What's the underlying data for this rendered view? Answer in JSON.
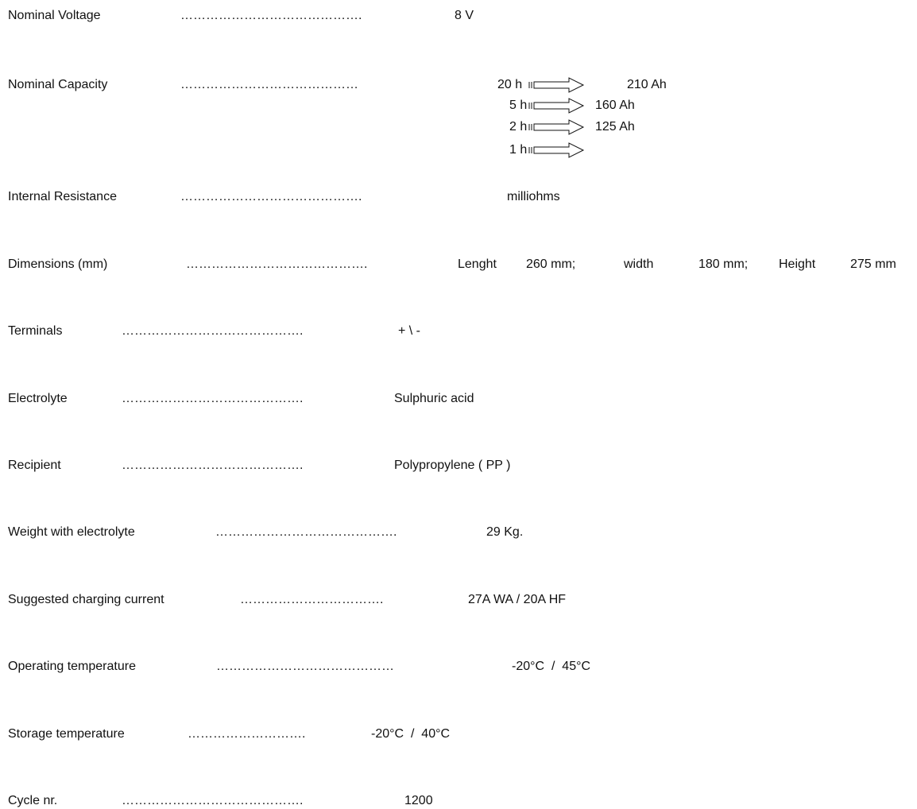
{
  "specs": {
    "nominal_voltage": {
      "label": "Nominal Voltage",
      "dots": "…………………………………….",
      "value": "8 V"
    },
    "nominal_capacity": {
      "label": "Nominal Capacity",
      "dots": "……………………………………",
      "rates": [
        {
          "time": "20 h",
          "capacity": "210 Ah"
        },
        {
          "time": "5 h",
          "capacity": "160 Ah"
        },
        {
          "time": "2 h",
          "capacity": "125 Ah"
        },
        {
          "time": "1 h",
          "capacity": ""
        }
      ]
    },
    "internal_resistance": {
      "label": "Internal Resistance",
      "dots": "…………………………………….",
      "value": "milliohms"
    },
    "dimensions": {
      "label": "Dimensions (mm)",
      "dots": "…………………………………….",
      "length_label": "Lenght",
      "length_value": "260 mm;",
      "width_label": "width",
      "width_value": "180 mm;",
      "height_label": "Height",
      "height_value": "275 mm"
    },
    "terminals": {
      "label": "Terminals",
      "dots": "…………………………………….",
      "value": "+ \\ -"
    },
    "electrolyte": {
      "label": "Electrolyte",
      "dots": "…………………………………….",
      "value": "Sulphuric acid"
    },
    "recipient": {
      "label": "Recipient",
      "dots": "…………………………………….",
      "value": "Polypropylene ( PP )"
    },
    "weight": {
      "label": "Weight with electrolyte",
      "dots": "…………………………………….",
      "value": "29 Kg."
    },
    "charging_current": {
      "label": "Suggested charging current",
      "dots": "…………………………….",
      "value": "27A WA / 20A HF"
    },
    "operating_temperature": {
      "label": "Operating temperature",
      "dots": "……………………………………",
      "value": "-20°C  /  45°C"
    },
    "storage_temperature": {
      "label": "Storage temperature",
      "dots": "……………………….",
      "value": "-20°C  /  40°C"
    },
    "cycle_nr": {
      "label": "Cycle nr.",
      "dots": "…………………………………….",
      "value": "1200"
    }
  }
}
